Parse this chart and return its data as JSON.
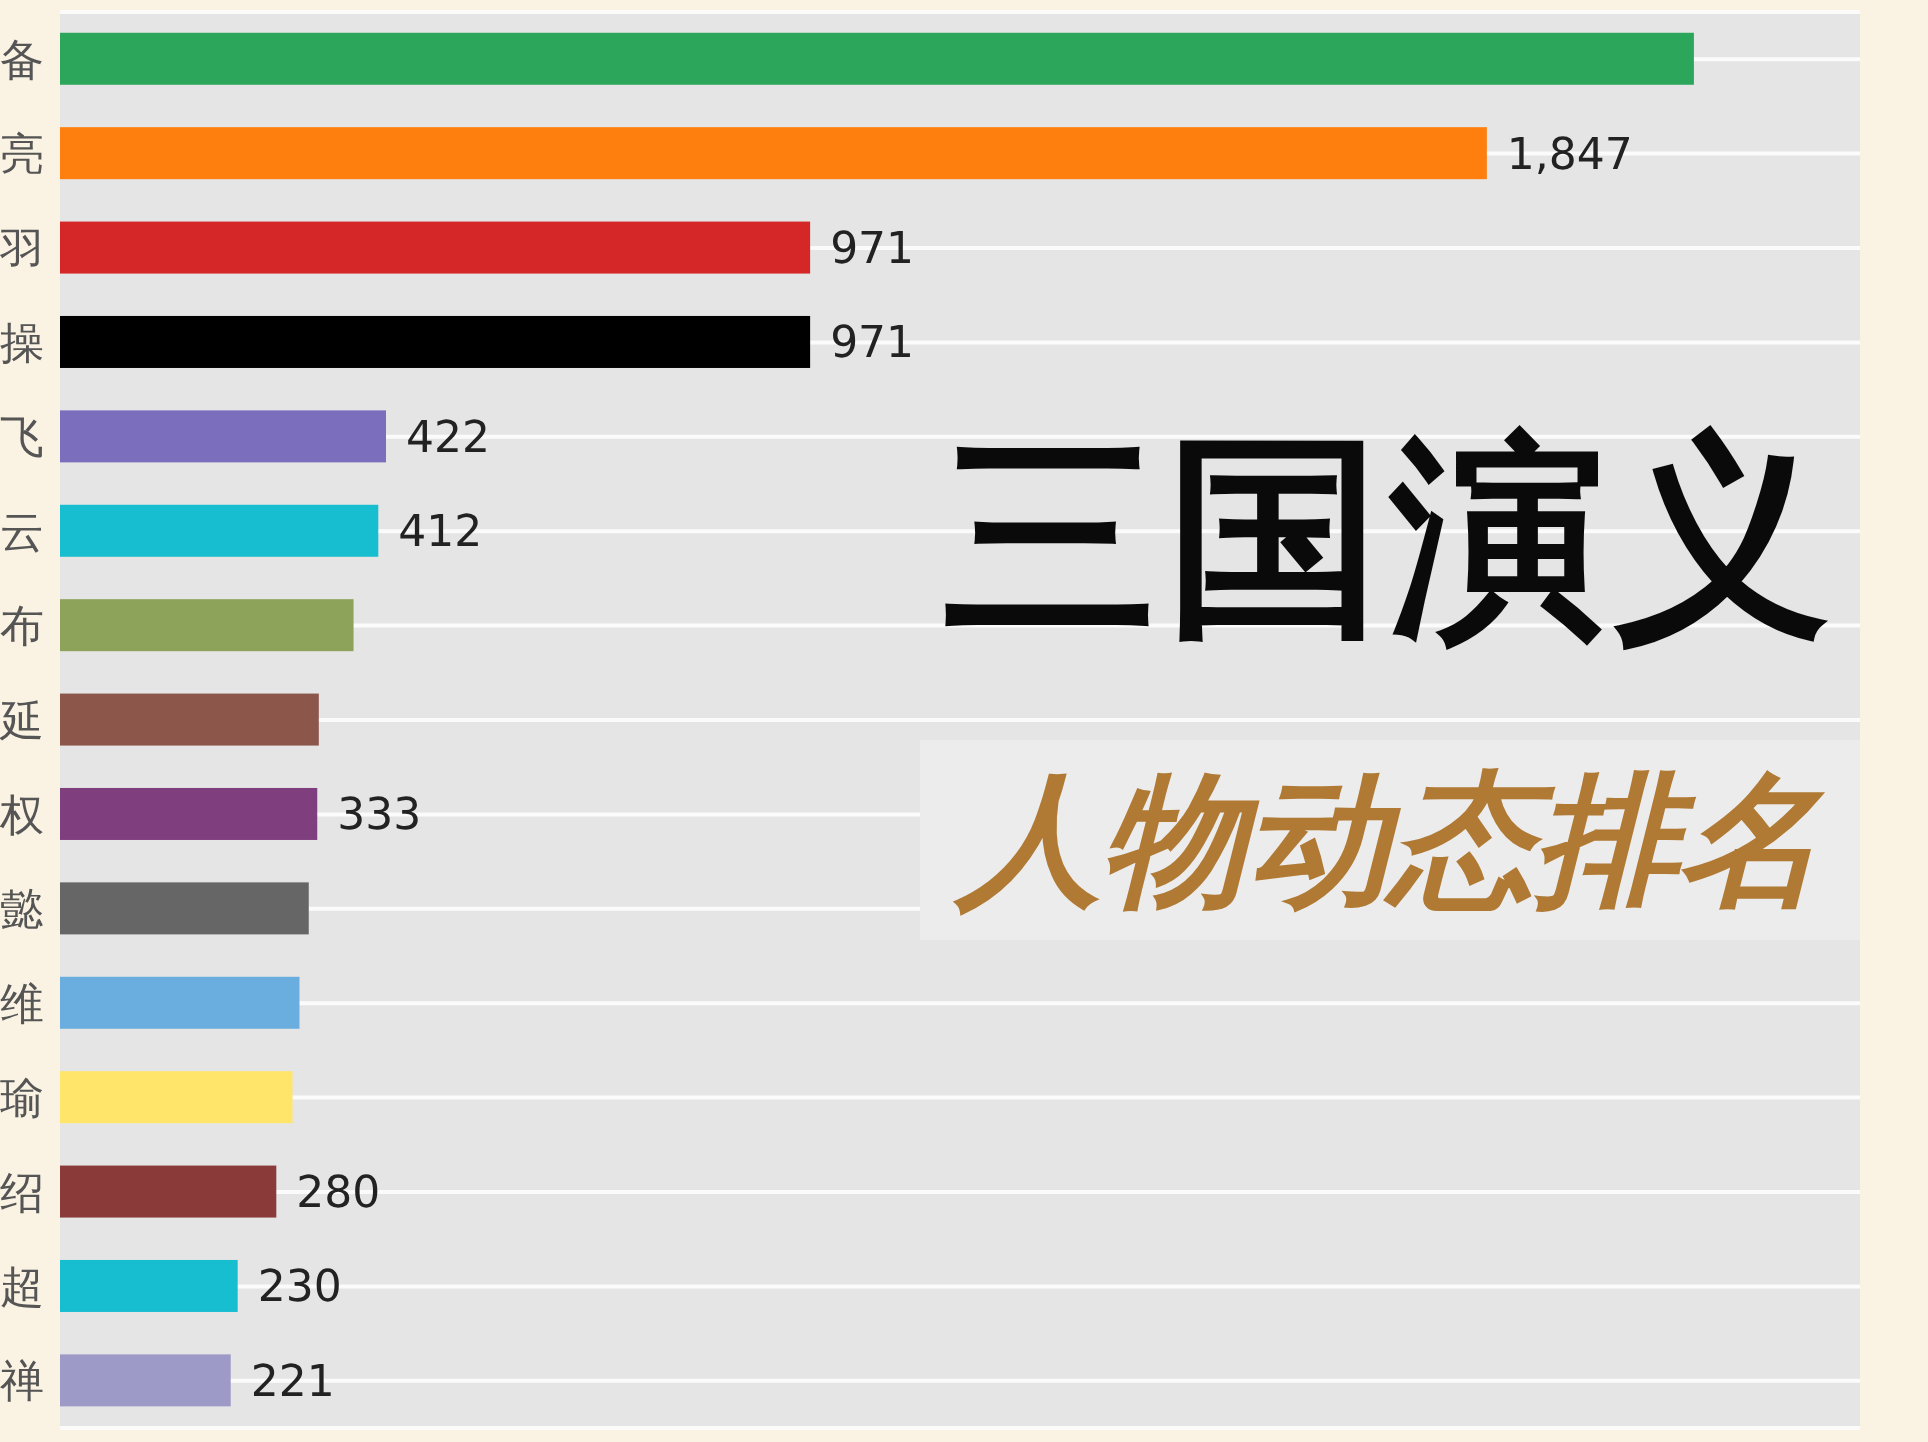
{
  "chart_data": {
    "type": "bar",
    "orientation": "horizontal",
    "title": "三国演义",
    "subtitle": "人物动态排名",
    "categories": [
      "备",
      "亮",
      "羽",
      "操",
      "飞",
      "云",
      "布",
      "延",
      "权",
      "懿",
      "维",
      "瑜",
      "绍",
      "超",
      "禅"
    ],
    "values": [
      2115,
      1847,
      971,
      971,
      422,
      412,
      380,
      335,
      333,
      322,
      310,
      301,
      280,
      230,
      221
    ],
    "value_labels": [
      null,
      "1,847",
      "971",
      "971",
      "422",
      "412",
      null,
      null,
      "333",
      null,
      null,
      null,
      "280",
      "230",
      "221"
    ],
    "colors": [
      "#2ca65a",
      "#ff7f0e",
      "#d62728",
      "#000000",
      "#7b6fbd",
      "#17becf",
      "#8ea35a",
      "#8c564b",
      "#7f3f7f",
      "#666666",
      "#6aaee0",
      "#ffe56a",
      "#8b3a3a",
      "#17becf",
      "#9e9ac8"
    ],
    "xlim": [
      0,
      2330
    ],
    "tick_labels": "y",
    "grid": "y"
  }
}
